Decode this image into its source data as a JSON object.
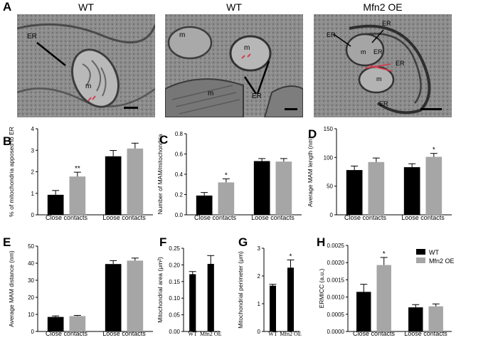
{
  "panel_letters": [
    "A",
    "B",
    "C",
    "D",
    "E",
    "F",
    "G",
    "H"
  ],
  "micrographs": [
    {
      "title": "WT",
      "labels": [
        "ER",
        "m"
      ]
    },
    {
      "title": "WT",
      "labels": [
        "m",
        "m",
        "m",
        "ER"
      ]
    },
    {
      "title": "Mfn2 OE",
      "labels": [
        "ER",
        "ER",
        "ER",
        "ER",
        "m",
        "m",
        "ER"
      ]
    }
  ],
  "legend": {
    "entries": [
      "WT",
      "Mfn2 OE"
    ],
    "colors": [
      "#000000",
      "#a6a6a6"
    ]
  },
  "chart_data": [
    {
      "panel": "B",
      "type": "bar",
      "categories": [
        "Close contacts",
        "Loose contacts"
      ],
      "series": [
        {
          "name": "WT",
          "values": [
            0.93,
            2.72
          ],
          "errors": [
            0.2,
            0.27
          ]
        },
        {
          "name": "Mfn2 OE",
          "values": [
            1.78,
            3.08
          ],
          "errors": [
            0.2,
            0.25
          ]
        }
      ],
      "ylabel": "% of mitochondria apposed to ER",
      "ylim": [
        0,
        4
      ],
      "yticks": [
        "0",
        "1",
        "2",
        "3",
        "4"
      ],
      "annotations": [
        {
          "category": 0,
          "series": 1,
          "text": "**"
        }
      ]
    },
    {
      "panel": "C",
      "type": "bar",
      "categories": [
        "Close contacts",
        "Loose contacts"
      ],
      "series": [
        {
          "name": "WT",
          "values": [
            0.19,
            0.53
          ],
          "errors": [
            0.03,
            0.025
          ]
        },
        {
          "name": "Mfn2 OE",
          "values": [
            0.32,
            0.525
          ],
          "errors": [
            0.035,
            0.03
          ]
        }
      ],
      "ylabel": "Number of MAM/mitochondria",
      "ylim": [
        0,
        0.8
      ],
      "yticks": [
        "0.0",
        "0.2",
        "0.4",
        "0.6",
        "0.8"
      ],
      "annotations": [
        {
          "category": 0,
          "series": 1,
          "text": "*"
        }
      ]
    },
    {
      "panel": "D",
      "type": "bar",
      "categories": [
        "Close contacts",
        "Loose contacts"
      ],
      "series": [
        {
          "name": "WT",
          "values": [
            78,
            83
          ],
          "errors": [
            7,
            6
          ]
        },
        {
          "name": "Mfn2 OE",
          "values": [
            92,
            101
          ],
          "errors": [
            7,
            6
          ]
        }
      ],
      "ylabel": "Average MAM length (nm)",
      "ylim": [
        0,
        150
      ],
      "yticks": [
        "0",
        "50",
        "100",
        "150"
      ],
      "annotations": [
        {
          "category": 1,
          "series": 1,
          "text": "*"
        }
      ]
    },
    {
      "panel": "E",
      "type": "bar",
      "categories": [
        "Close contacts",
        "Loose contacts"
      ],
      "series": [
        {
          "name": "WT",
          "values": [
            8.5,
            39.5
          ],
          "errors": [
            0.6,
            2
          ]
        },
        {
          "name": "Mfn2 OE",
          "values": [
            9,
            41.5
          ],
          "errors": [
            0.4,
            1.5
          ]
        }
      ],
      "ylabel": "Average MAM distance (nm)",
      "ylim": [
        0,
        50
      ],
      "yticks": [
        "0",
        "10",
        "20",
        "30",
        "40",
        "50"
      ],
      "annotations": []
    },
    {
      "panel": "F",
      "type": "bar",
      "categories": [
        "WT",
        "Mfn2 OE"
      ],
      "series": [
        {
          "values": [
            0.172,
            0.203
          ],
          "errors": [
            0.008,
            0.025
          ]
        }
      ],
      "ylabel": "Mitochondrial area (μm²)",
      "ylim": [
        0,
        0.25
      ],
      "yticks": [
        "0.00",
        "0.05",
        "0.10",
        "0.15",
        "0.20",
        "0.25"
      ],
      "annotations": []
    },
    {
      "panel": "G",
      "type": "bar",
      "categories": [
        "WT",
        "Mfn2 OE"
      ],
      "series": [
        {
          "values": [
            1.65,
            2.3
          ],
          "errors": [
            0.05,
            0.28
          ]
        }
      ],
      "ylabel": "Mitochondrial perimeter (μm)",
      "ylim": [
        0,
        3
      ],
      "yticks": [
        "0",
        "1",
        "2",
        "3"
      ],
      "annotations": [
        {
          "category": 1,
          "series": 0,
          "text": "*"
        }
      ]
    },
    {
      "panel": "H",
      "type": "bar",
      "categories": [
        "Close contacts",
        "Loose contacts"
      ],
      "series": [
        {
          "name": "WT",
          "values": [
            0.00115,
            0.0007
          ],
          "errors": [
            0.00022,
            8e-05
          ]
        },
        {
          "name": "Mfn2 OE",
          "values": [
            0.00193,
            0.00073
          ],
          "errors": [
            0.00022,
            7e-05
          ]
        }
      ],
      "ylabel": "ERMICC (a.u.)",
      "ylim": [
        0,
        0.0025
      ],
      "yticks": [
        "0.0000",
        "0.0005",
        "0.0010",
        "0.0015",
        "0.0020",
        "0.0025"
      ],
      "annotations": [
        {
          "category": 0,
          "series": 1,
          "text": "*"
        }
      ]
    }
  ]
}
